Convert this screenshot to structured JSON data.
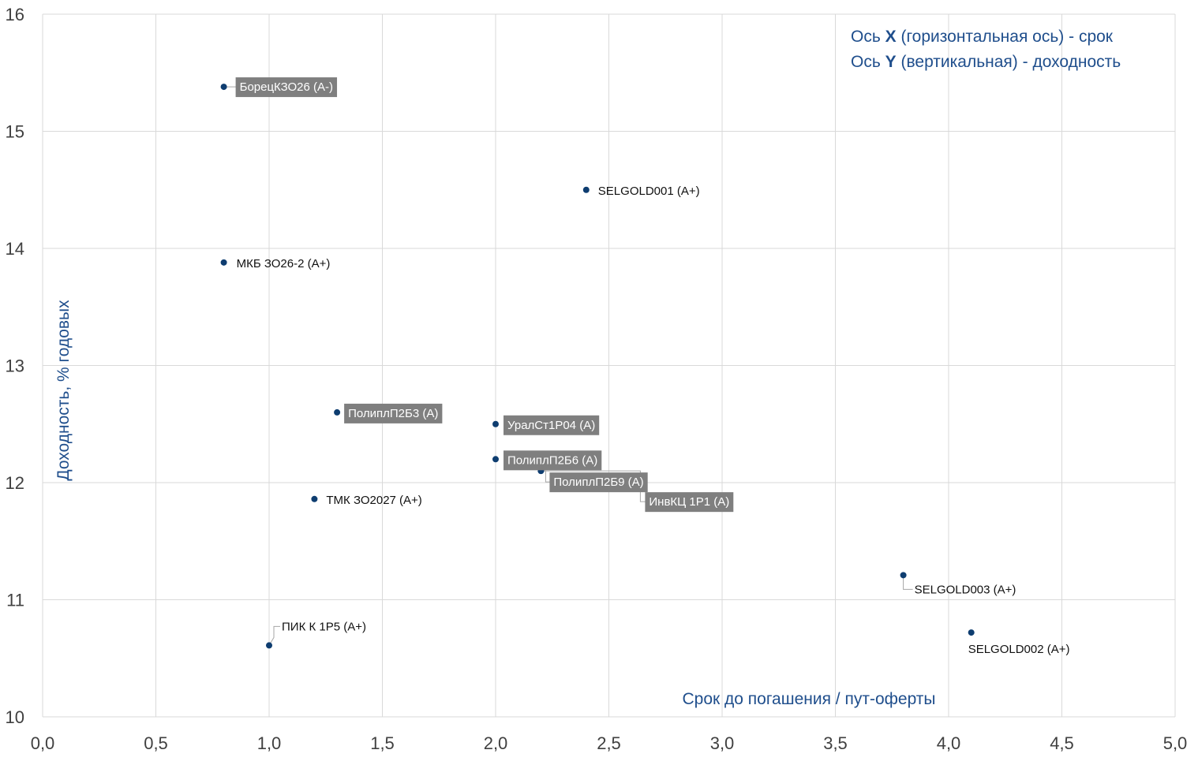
{
  "chart_data": {
    "type": "scatter",
    "title": "",
    "xlabel": "Срок до погашения / пут-оферты",
    "ylabel": "Доходность, % годовых",
    "xlim": [
      0,
      5
    ],
    "ylim": [
      10,
      16
    ],
    "xticks": [
      "0,0",
      "0,5",
      "1,0",
      "1,5",
      "2,0",
      "2,5",
      "3,0",
      "3,5",
      "4,0",
      "4,5",
      "5,0"
    ],
    "yticks": [
      "10",
      "11",
      "12",
      "13",
      "14",
      "15",
      "16"
    ],
    "grid": true,
    "legend": "none",
    "annotation": {
      "line1_prefix": "Ось ",
      "line1_bold": "X",
      "line1_rest": " (горизонтальная ось) - срок",
      "line2_prefix": "Ось ",
      "line2_bold": "Y",
      "line2_rest": " (вертикальная) - доходность"
    },
    "point_color": "#0e3d70",
    "points": [
      {
        "label": "БорецКЗО26 (А-)",
        "x": 0.8,
        "y": 15.38,
        "highlight": true
      },
      {
        "label": "SELGOLD001 (A+)",
        "x": 2.4,
        "y": 14.5,
        "highlight": false
      },
      {
        "label": "МКБ ЗО26-2 (А+)",
        "x": 0.8,
        "y": 13.88,
        "highlight": false
      },
      {
        "label": "ПолиплП2Б3 (А)",
        "x": 1.3,
        "y": 12.6,
        "highlight": true
      },
      {
        "label": "УралСт1Р04 (А)",
        "x": 2.0,
        "y": 12.5,
        "highlight": true
      },
      {
        "label": "ПолиплП2Б6 (А)",
        "x": 2.0,
        "y": 12.2,
        "highlight": true
      },
      {
        "label": "ПолиплП2Б9 (А)",
        "x": 2.2,
        "y": 12.1,
        "highlight": true
      },
      {
        "label": "ИнвКЦ 1Р1 (А)",
        "x": 2.2,
        "y": 12.1,
        "highlight": true
      },
      {
        "label": "ТМК ЗО2027 (А+)",
        "x": 1.2,
        "y": 11.86,
        "highlight": false
      },
      {
        "label": "SELGOLD003 (A+)",
        "x": 3.8,
        "y": 11.21,
        "highlight": false
      },
      {
        "label": "ПИК К 1Р5 (А+)",
        "x": 1.0,
        "y": 10.61,
        "highlight": false
      },
      {
        "label": "SELGOLD002 (A+)",
        "x": 4.1,
        "y": 10.72,
        "highlight": false
      }
    ]
  }
}
